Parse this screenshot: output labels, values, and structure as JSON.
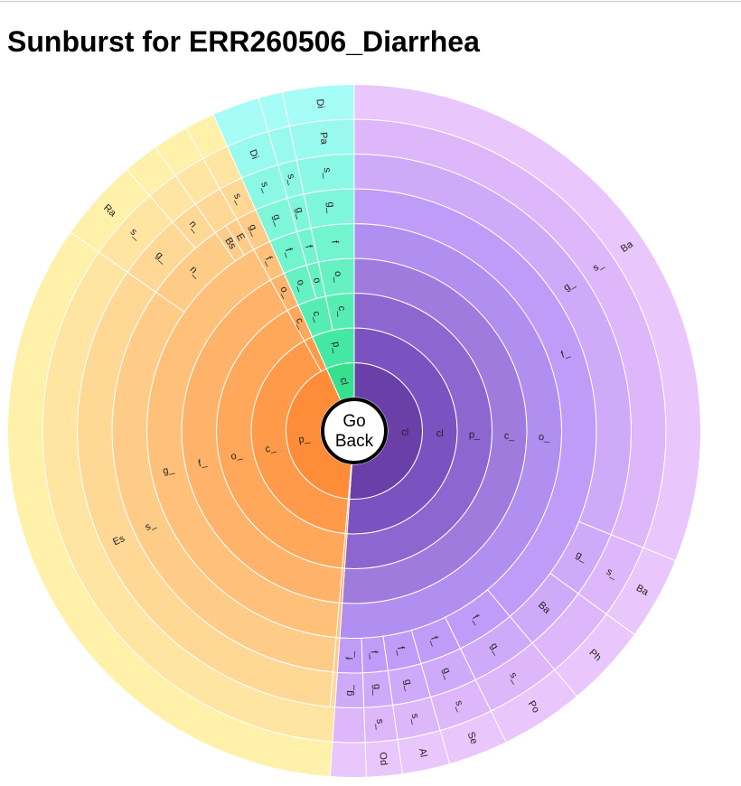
{
  "page": {
    "title": "Sunburst for ERR260506_Diarrhea"
  },
  "center": {
    "line1": "Go",
    "line2": "Back",
    "fill": "#ffffff",
    "ring": "#000000"
  },
  "colors": {
    "purple": [
      "#6b3fa8",
      "#7b52bf",
      "#8d66cf",
      "#9f7bde",
      "#b08ff0",
      "#bf9cf8",
      "#cfaaf9",
      "#ddb7fa",
      "#e9c6fb"
    ],
    "orange": [
      "#ff8c38",
      "#ff9a4a",
      "#ffa75a",
      "#ffb36a",
      "#ffc07a",
      "#ffcc88",
      "#ffd896",
      "#ffe4a2",
      "#fff0aa"
    ],
    "green": [
      "#36e08f",
      "#45e8a3",
      "#56edb3",
      "#66f1c2",
      "#72f4cf",
      "#7ef6da",
      "#8af8e4",
      "#98faee",
      "#a6fcf6"
    ]
  },
  "chart_data": {
    "type": "sunburst",
    "title": "Sunburst for ERR260506_Diarrhea",
    "start_angle": 0,
    "rings": [
      [
        {
          "label": "cl",
          "value": 184,
          "group": "purple"
        },
        {
          "label": "",
          "value": 1,
          "group": "orange"
        },
        {
          "label": "p_",
          "value": 151,
          "group": "orange"
        },
        {
          "label": "cl",
          "value": 24,
          "group": "green"
        }
      ],
      [
        {
          "label": "cl",
          "value": 184,
          "group": "purple"
        },
        {
          "label": "",
          "value": 1,
          "group": "orange"
        },
        {
          "label": "c_",
          "value": 146,
          "group": "orange"
        },
        {
          "label": "",
          "value": 5,
          "group": "orange"
        },
        {
          "label": "p_",
          "value": 24,
          "group": "green"
        }
      ],
      [
        {
          "label": "p_",
          "value": 184,
          "group": "purple"
        },
        {
          "label": "",
          "value": 1,
          "group": "orange"
        },
        {
          "label": "o_",
          "value": 146,
          "group": "orange"
        },
        {
          "label": "c_",
          "value": 5,
          "group": "orange"
        },
        {
          "label": "c_",
          "value": 12,
          "group": "green"
        },
        {
          "label": "c_",
          "value": 12,
          "group": "green"
        }
      ],
      [
        {
          "label": "c_",
          "value": 184,
          "group": "purple"
        },
        {
          "label": "",
          "value": 1,
          "group": "orange"
        },
        {
          "label": "f_",
          "value": 146,
          "group": "orange"
        },
        {
          "label": "o_",
          "value": 5,
          "group": "orange"
        },
        {
          "label": "o_",
          "value": 8,
          "group": "green"
        },
        {
          "label": "o",
          "value": 4,
          "group": "green"
        },
        {
          "label": "o_",
          "value": 12,
          "group": "green"
        }
      ],
      [
        {
          "label": "o_",
          "value": 184,
          "group": "purple"
        },
        {
          "label": "",
          "value": 1,
          "group": "orange"
        },
        {
          "label": "g_",
          "value": 146,
          "group": "orange"
        },
        {
          "label": "f_",
          "value": 5,
          "group": "orange"
        },
        {
          "label": "f_",
          "value": 8,
          "group": "green"
        },
        {
          "label": "f",
          "value": 4,
          "group": "green"
        },
        {
          "label": "f",
          "value": 12,
          "group": "green"
        }
      ],
      [
        {
          "label": "f_",
          "value": 140,
          "group": "purple"
        },
        {
          "label": "f_",
          "value": 14,
          "group": "purple"
        },
        {
          "label": "f_",
          "value": 10,
          "group": "purple"
        },
        {
          "label": "f_",
          "value": 8,
          "group": "purple"
        },
        {
          "label": "f_",
          "value": 6,
          "group": "purple"
        },
        {
          "label": "f_",
          "value": 6,
          "group": "purple"
        },
        {
          "label": "",
          "value": 1,
          "group": "orange"
        },
        {
          "label": "s_",
          "value": 120,
          "group": "orange"
        },
        {
          "label": "n_",
          "value": 20,
          "group": "orange"
        },
        {
          "label": "Bs",
          "value": 3,
          "group": "orange"
        },
        {
          "label": "E",
          "value": 3,
          "group": "orange"
        },
        {
          "label": "g_",
          "value": 5,
          "group": "orange"
        },
        {
          "label": "g_",
          "value": 8,
          "group": "green"
        },
        {
          "label": "g_",
          "value": 4,
          "group": "green"
        },
        {
          "label": "g_",
          "value": 12,
          "group": "green"
        }
      ],
      [
        {
          "label": "g_",
          "value": 112,
          "group": "purple"
        },
        {
          "label": "g_",
          "value": 14,
          "group": "purple"
        },
        {
          "label": "Ba",
          "value": 14,
          "group": "purple"
        },
        {
          "label": "g_",
          "value": 14,
          "group": "purple"
        },
        {
          "label": "g_",
          "value": 10,
          "group": "purple"
        },
        {
          "label": "g_",
          "value": 8,
          "group": "purple"
        },
        {
          "label": "g_",
          "value": 6,
          "group": "purple"
        },
        {
          "label": "g_",
          "value": 6,
          "group": "purple"
        },
        {
          "label": "",
          "value": 1,
          "group": "orange"
        },
        {
          "label": "Es",
          "value": 120,
          "group": "orange"
        },
        {
          "label": "g_",
          "value": 14,
          "group": "orange"
        },
        {
          "label": "n_",
          "value": 6,
          "group": "orange"
        },
        {
          "label": "",
          "value": 6,
          "group": "orange"
        },
        {
          "label": "s_",
          "value": 5,
          "group": "orange"
        },
        {
          "label": "s_",
          "value": 8,
          "group": "green"
        },
        {
          "label": "s_",
          "value": 4,
          "group": "green"
        },
        {
          "label": "s_",
          "value": 12,
          "group": "green"
        }
      ],
      [
        {
          "label": "s_",
          "value": 112,
          "group": "purple"
        },
        {
          "label": "s_",
          "value": 14,
          "group": "purple"
        },
        {
          "label": "",
          "value": 14,
          "group": "purple"
        },
        {
          "label": "s_",
          "value": 14,
          "group": "purple"
        },
        {
          "label": "s_",
          "value": 10,
          "group": "purple"
        },
        {
          "label": "s_",
          "value": 8,
          "group": "purple"
        },
        {
          "label": "s_",
          "value": 6,
          "group": "purple"
        },
        {
          "label": "",
          "value": 6,
          "group": "purple"
        },
        {
          "label": "",
          "value": 121,
          "group": "orange"
        },
        {
          "label": "s_",
          "value": 14,
          "group": "orange"
        },
        {
          "label": "",
          "value": 6,
          "group": "orange"
        },
        {
          "label": "",
          "value": 6,
          "group": "orange"
        },
        {
          "label": "",
          "value": 5,
          "group": "orange"
        },
        {
          "label": "Di",
          "value": 8,
          "group": "green"
        },
        {
          "label": "",
          "value": 4,
          "group": "green"
        },
        {
          "label": "Pa",
          "value": 12,
          "group": "green"
        }
      ],
      [
        {
          "label": "Ba",
          "value": 112,
          "group": "purple"
        },
        {
          "label": "Ba",
          "value": 14,
          "group": "purple"
        },
        {
          "label": "Ph",
          "value": 14,
          "group": "purple"
        },
        {
          "label": "Po",
          "value": 14,
          "group": "purple"
        },
        {
          "label": "Se",
          "value": 10,
          "group": "purple"
        },
        {
          "label": "Al",
          "value": 8,
          "group": "purple"
        },
        {
          "label": "Od",
          "value": 6,
          "group": "purple"
        },
        {
          "label": "",
          "value": 6,
          "group": "purple"
        },
        {
          "label": "",
          "value": 121,
          "group": "orange"
        },
        {
          "label": "Ra",
          "value": 14,
          "group": "orange"
        },
        {
          "label": "",
          "value": 6,
          "group": "orange"
        },
        {
          "label": "",
          "value": 6,
          "group": "orange"
        },
        {
          "label": "",
          "value": 5,
          "group": "orange"
        },
        {
          "label": "",
          "value": 8,
          "group": "green"
        },
        {
          "label": "",
          "value": 4,
          "group": "green"
        },
        {
          "label": "Di",
          "value": 12,
          "group": "green"
        }
      ]
    ]
  }
}
